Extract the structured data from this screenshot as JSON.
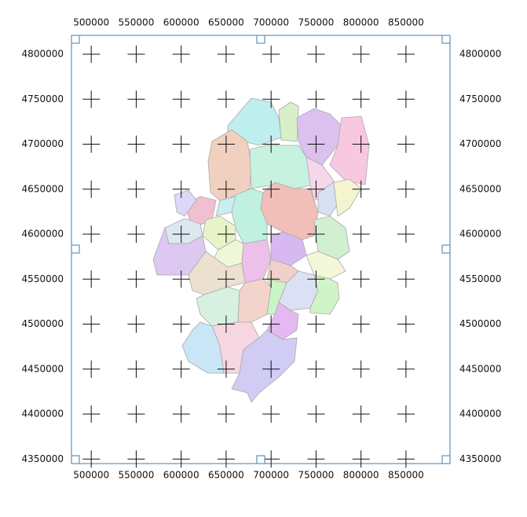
{
  "map": {
    "xlim": [
      478000,
      899000
    ],
    "ylim": [
      4345000,
      4821000
    ],
    "xticks": [
      500000,
      550000,
      600000,
      650000,
      700000,
      750000,
      800000,
      850000
    ],
    "yticks": [
      4350000,
      4400000,
      4450000,
      4500000,
      4550000,
      4600000,
      4650000,
      4700000,
      4750000,
      4800000
    ]
  }
}
